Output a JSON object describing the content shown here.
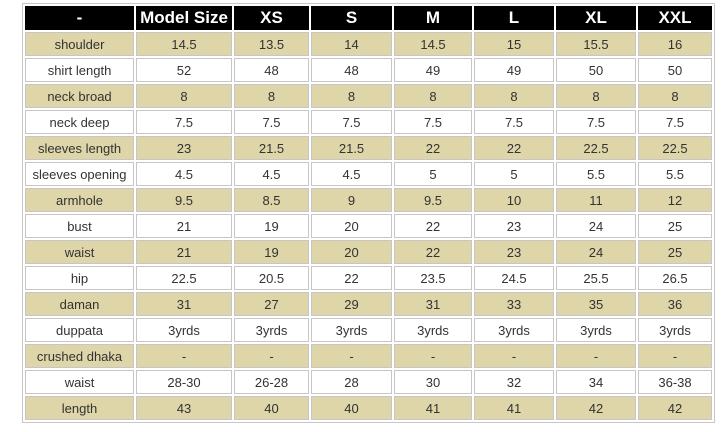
{
  "colors": {
    "header_bg": "#000000",
    "header_text": "#ffffff",
    "row_alt_bg": "#ded5a8",
    "row_bg": "#ffffff",
    "cell_border": "#c6c6c6",
    "text": "#333333",
    "page_bg": "#ffffff"
  },
  "chart_data": {
    "type": "table",
    "title": "",
    "columns": [
      "-",
      "Model Size",
      "XS",
      "S",
      "M",
      "L",
      "XL",
      "XXL"
    ],
    "rows": [
      {
        "label": "shoulder",
        "values": [
          "14.5",
          "13.5",
          "14",
          "14.5",
          "15",
          "15.5",
          "16"
        ]
      },
      {
        "label": "shirt length",
        "values": [
          "52",
          "48",
          "48",
          "49",
          "49",
          "50",
          "50"
        ]
      },
      {
        "label": "neck broad",
        "values": [
          "8",
          "8",
          "8",
          "8",
          "8",
          "8",
          "8"
        ]
      },
      {
        "label": "neck deep",
        "values": [
          "7.5",
          "7.5",
          "7.5",
          "7.5",
          "7.5",
          "7.5",
          "7.5"
        ]
      },
      {
        "label": "sleeves length",
        "values": [
          "23",
          "21.5",
          "21.5",
          "22",
          "22",
          "22.5",
          "22.5"
        ]
      },
      {
        "label": "sleeves opening",
        "values": [
          "4.5",
          "4.5",
          "4.5",
          "5",
          "5",
          "5.5",
          "5.5"
        ]
      },
      {
        "label": "armhole",
        "values": [
          "9.5",
          "8.5",
          "9",
          "9.5",
          "10",
          "11",
          "12"
        ]
      },
      {
        "label": "bust",
        "values": [
          "21",
          "19",
          "20",
          "22",
          "23",
          "24",
          "25"
        ]
      },
      {
        "label": "waist",
        "values": [
          "21",
          "19",
          "20",
          "22",
          "23",
          "24",
          "25"
        ]
      },
      {
        "label": "hip",
        "values": [
          "22.5",
          "20.5",
          "22",
          "23.5",
          "24.5",
          "25.5",
          "26.5"
        ]
      },
      {
        "label": "daman",
        "values": [
          "31",
          "27",
          "29",
          "31",
          "33",
          "35",
          "36"
        ]
      },
      {
        "label": "duppata",
        "values": [
          "3yrds",
          "3yrds",
          "3yrds",
          "3yrds",
          "3yrds",
          "3yrds",
          "3yrds"
        ]
      },
      {
        "label": "crushed dhaka",
        "values": [
          "-",
          "-",
          "-",
          "-",
          "-",
          "-",
          "-"
        ]
      },
      {
        "label": "waist",
        "values": [
          "28-30",
          "26-28",
          "28",
          "30",
          "32",
          "34",
          "36-38"
        ]
      },
      {
        "label": "length",
        "values": [
          "43",
          "40",
          "40",
          "41",
          "41",
          "42",
          "42"
        ]
      }
    ]
  }
}
